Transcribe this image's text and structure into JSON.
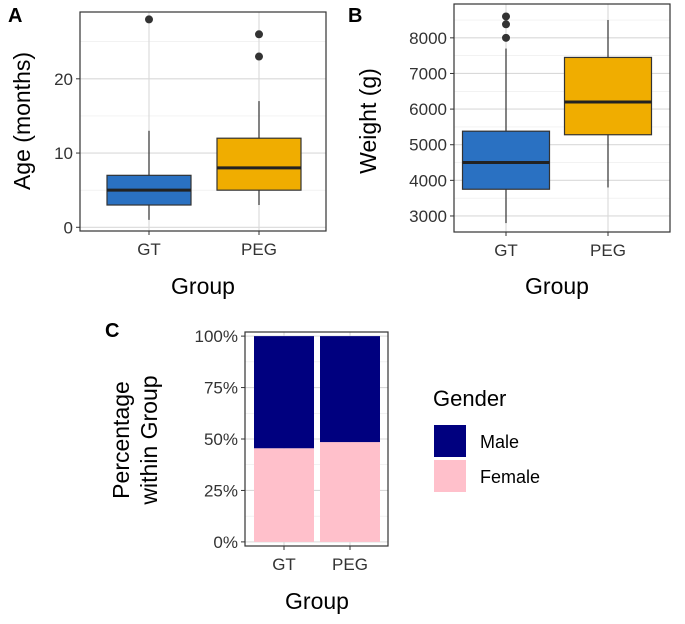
{
  "chart_data": [
    {
      "panel": "A",
      "type": "boxplot",
      "xlabel": "Group",
      "ylabel": "Age (months)",
      "categories": [
        "GT",
        "PEG"
      ],
      "yticks": [
        0,
        10,
        20
      ],
      "ytick_labels": [
        "0",
        "10",
        "20"
      ],
      "ylim": [
        -0.5,
        29
      ],
      "boxes": [
        {
          "name": "GT",
          "min": 1,
          "q1": 3,
          "median": 5,
          "q3": 7,
          "max": 13,
          "outliers": [
            28
          ],
          "color": "#2a71c2"
        },
        {
          "name": "PEG",
          "min": 3,
          "q1": 5,
          "median": 8,
          "q3": 12,
          "max": 17,
          "outliers": [
            23,
            26
          ],
          "color": "#f0ad00"
        }
      ]
    },
    {
      "panel": "B",
      "type": "boxplot",
      "xlabel": "Group",
      "ylabel": "Weight (g)",
      "categories": [
        "GT",
        "PEG"
      ],
      "yticks": [
        3000,
        4000,
        5000,
        6000,
        7000,
        8000
      ],
      "ytick_labels": [
        "3000",
        "4000",
        "5000",
        "6000",
        "7000",
        "8000"
      ],
      "ylim": [
        2550,
        8950
      ],
      "boxes": [
        {
          "name": "GT",
          "min": 2800,
          "q1": 3750,
          "median": 4500,
          "q3": 5380,
          "max": 7700,
          "outliers": [
            8000,
            8380,
            8600
          ],
          "color": "#2a71c2"
        },
        {
          "name": "PEG",
          "min": 3800,
          "q1": 5280,
          "median": 6200,
          "q3": 7450,
          "max": 8500,
          "outliers": [],
          "color": "#f0ad00"
        }
      ]
    },
    {
      "panel": "C",
      "type": "stacked_bar",
      "xlabel": "Group",
      "ylabel": [
        "Percentage",
        "within Group"
      ],
      "categories": [
        "GT",
        "PEG"
      ],
      "yticks": [
        0,
        25,
        50,
        75,
        100
      ],
      "ytick_labels": [
        "0%",
        "25%",
        "50%",
        "75%",
        "100%"
      ],
      "ylim": [
        -2,
        102
      ],
      "series": [
        {
          "name": "Female",
          "values": [
            45.5,
            48.5
          ],
          "color": "#ffc0cb"
        },
        {
          "name": "Male",
          "values": [
            54.5,
            51.5
          ],
          "color": "#00007f"
        }
      ],
      "legend": {
        "title": "Gender",
        "entries": [
          {
            "label": "Male",
            "color": "#00007f"
          },
          {
            "label": "Female",
            "color": "#ffc0cb"
          }
        ]
      }
    }
  ]
}
